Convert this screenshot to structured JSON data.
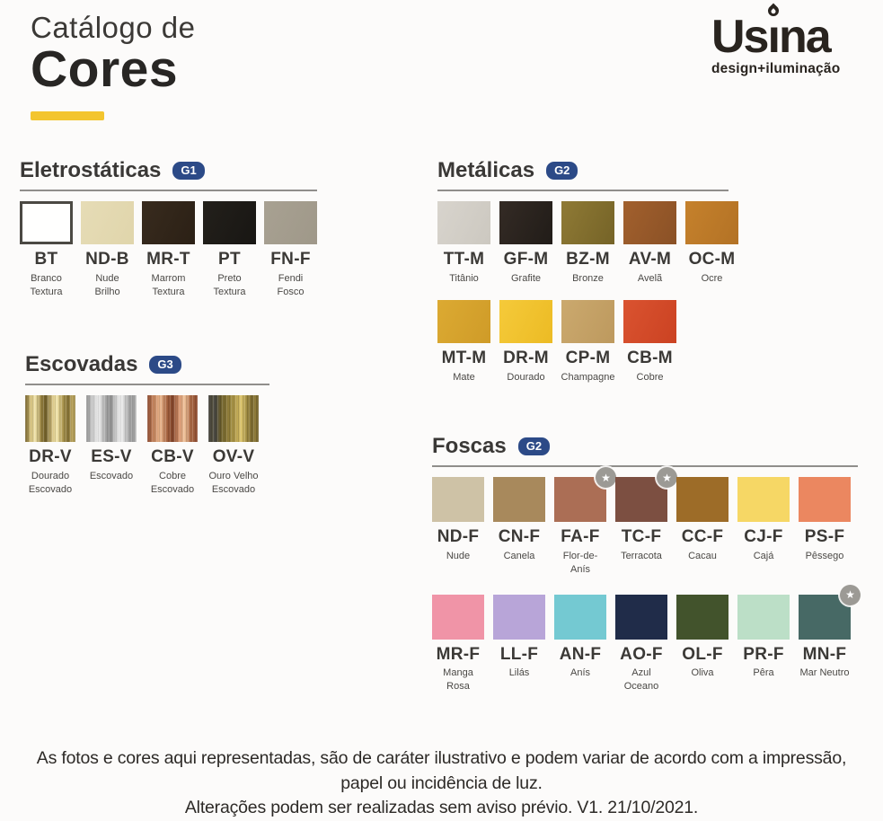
{
  "page": {
    "title_line1": "Catálogo de",
    "title_line2": "Cores",
    "accent_color": "#f3c52e"
  },
  "logo": {
    "name_pre": "Us",
    "name_i": "ı",
    "name_post": "na",
    "tagline": "design+iluminação"
  },
  "icons": {
    "star_badge": "★"
  },
  "badge_color": "#2c4a87",
  "sections": [
    {
      "id": "eletrostaticas",
      "title": "Eletrostáticas",
      "badge": "G1",
      "rows": [
        [
          {
            "code": "BT",
            "name": "Branco\nTextura",
            "color": "#fffffe",
            "border": true
          },
          {
            "code": "ND-B",
            "name": "Nude\nBrilho",
            "color": "#e6dcb6",
            "color2": "#e0d5ab"
          },
          {
            "code": "MR-T",
            "name": "Marrom\nTextura",
            "color": "#382b1e",
            "color2": "#2b2015"
          },
          {
            "code": "PT",
            "name": "Preto\nTextura",
            "color": "#23201b",
            "color2": "#181613"
          },
          {
            "code": "FN-F",
            "name": "Fendi\nFosco",
            "color": "#a8a192",
            "color2": "#9f9889"
          }
        ]
      ]
    },
    {
      "id": "metalicas",
      "title": "Metálicas",
      "badge": "G2",
      "rows": [
        [
          {
            "code": "TT-M",
            "name": "Titânio",
            "color": "#d8d4cd",
            "color2": "#ccc8c0"
          },
          {
            "code": "GF-M",
            "name": "Grafite",
            "color": "#342b25",
            "color2": "#211c18"
          },
          {
            "code": "BZ-M",
            "name": "Bronze",
            "color": "#8f7a35",
            "color2": "#756327"
          },
          {
            "code": "AV-M",
            "name": "Avelã",
            "color": "#a2602d",
            "color2": "#8a5126"
          },
          {
            "code": "OC-M",
            "name": "Ocre",
            "color": "#c5812c",
            "color2": "#b37225"
          }
        ],
        [
          {
            "code": "MT-M",
            "name": "Mate",
            "color": "#dcaa32",
            "color2": "#cf9b28"
          },
          {
            "code": "DR-M",
            "name": "Dourado",
            "color": "#f5ca3a",
            "color2": "#ecbb24"
          },
          {
            "code": "CP-M",
            "name": "Champagne",
            "color": "#cba96e",
            "color2": "#bd995e"
          },
          {
            "code": "CB-M",
            "name": "Cobre",
            "color": "#da5330",
            "color2": "#cb4222"
          }
        ]
      ]
    },
    {
      "id": "escovadas",
      "title": "Escovadas",
      "badge": "G3",
      "rows": [
        [
          {
            "code": "DR-V",
            "name": "Dourado\nEscovado",
            "color": "#b59c52",
            "texture": "brushed-gold"
          },
          {
            "code": "ES-V",
            "name": "Escovado",
            "color": "#bcbcbc",
            "texture": "brushed-silver"
          },
          {
            "code": "CB-V",
            "name": "Cobre\nEscovado",
            "color": "#b97752",
            "texture": "brushed-copper"
          },
          {
            "code": "OV-V",
            "name": "Ouro Velho\nEscovado",
            "color": "#8a7636",
            "texture": "brushed-oldgold"
          }
        ]
      ]
    },
    {
      "id": "foscas",
      "title": "Foscas",
      "badge": "G2",
      "rows": [
        [
          {
            "code": "ND-F",
            "name": "Nude",
            "color": "#cec2a6"
          },
          {
            "code": "CN-F",
            "name": "Canela",
            "color": "#a8895c"
          },
          {
            "code": "FA-F",
            "name": "Flor-de-Anís",
            "color": "#ab6e55",
            "star": true
          },
          {
            "code": "TC-F",
            "name": "Terracota",
            "color": "#7c4f41",
            "star": true
          },
          {
            "code": "CC-F",
            "name": "Cacau",
            "color": "#9d6c28"
          },
          {
            "code": "CJ-F",
            "name": "Cajá",
            "color": "#f6d765"
          },
          {
            "code": "PS-F",
            "name": "Pêssego",
            "color": "#eb8760"
          }
        ],
        [
          {
            "code": "MR-F",
            "name": "Manga Rosa",
            "color": "#f094a7"
          },
          {
            "code": "LL-F",
            "name": "Lilás",
            "color": "#b8a5d8"
          },
          {
            "code": "AN-F",
            "name": "Anís",
            "color": "#74c9d2"
          },
          {
            "code": "AO-F",
            "name": "Azul Oceano",
            "color": "#202c49"
          },
          {
            "code": "OL-F",
            "name": "Oliva",
            "color": "#42532c"
          },
          {
            "code": "PR-F",
            "name": "Pêra",
            "color": "#bcdfc7"
          },
          {
            "code": "MN-F",
            "name": "Mar Neutro",
            "color": "#476965",
            "star": true
          }
        ]
      ]
    }
  ],
  "disclaimer": {
    "line1": "As fotos e cores aqui representadas, são de caráter ilustrativo e podem variar de acordo com a impressão,",
    "line2": "papel ou incidência de luz.",
    "line3": "Alterações podem ser realizadas sem aviso prévio. V1. 21/10/2021."
  }
}
